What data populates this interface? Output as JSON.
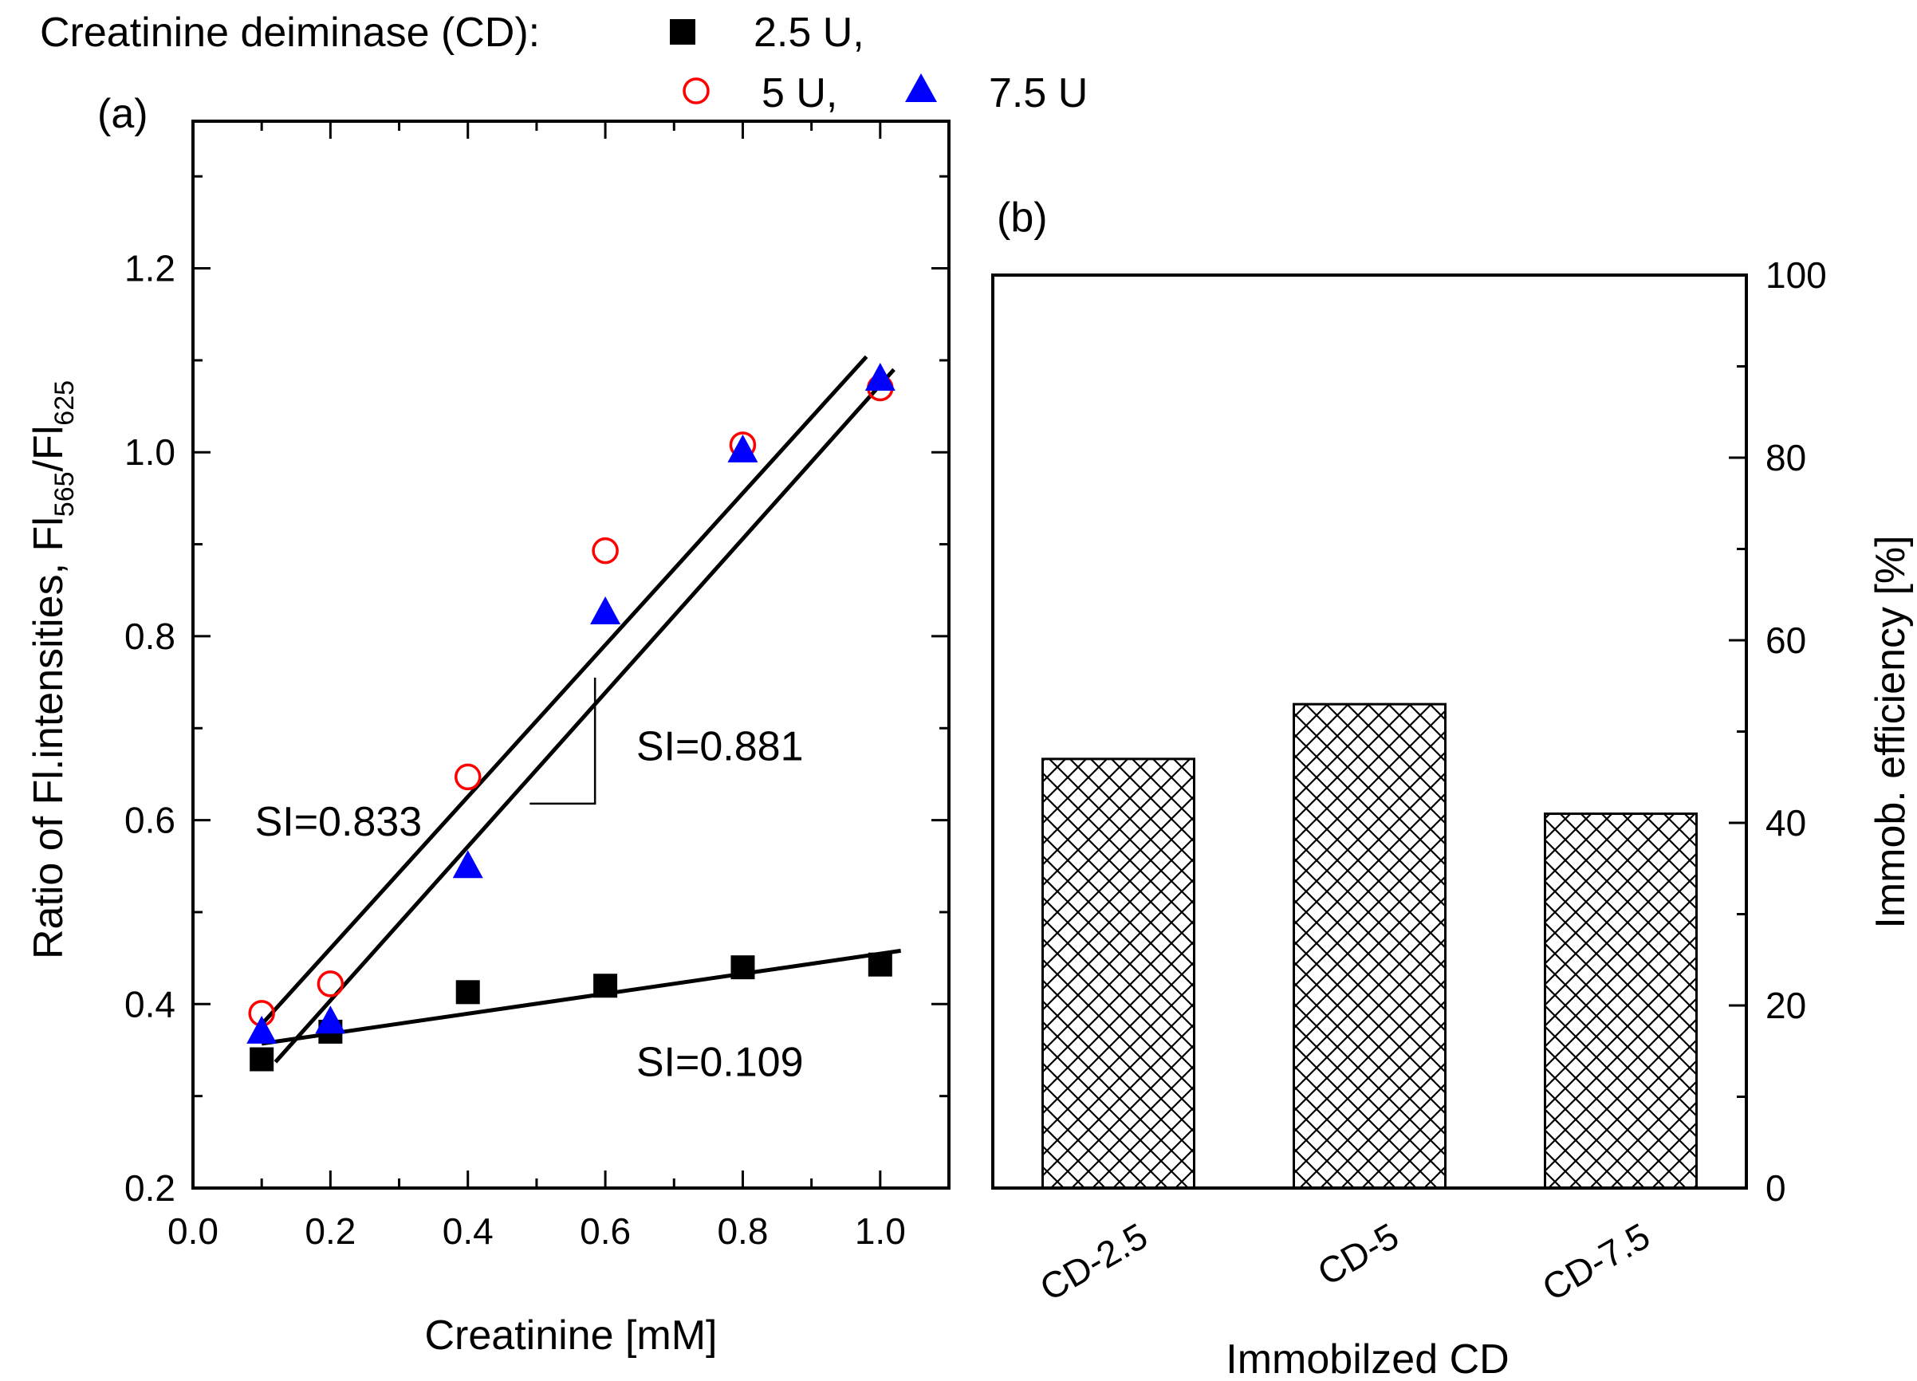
{
  "figure": {
    "legend_title": "Creatinine deiminase (CD):",
    "legend": [
      {
        "label": "2.5 U,",
        "marker": "square",
        "color": "#000000"
      },
      {
        "label": "5 U,",
        "marker": "circle-open",
        "color": "#ff0000"
      },
      {
        "label": "7.5 U",
        "marker": "triangle",
        "color": "#0000ff"
      }
    ]
  },
  "chart_data": [
    {
      "type": "scatter",
      "panel_label": "(a)",
      "xlabel": "Creatinine [mM]",
      "ylabel_main": "Ratio of Fl.intensities, Fl",
      "ylabel_sub1": "565",
      "ylabel_slash": "/Fl",
      "ylabel_sub2": "625",
      "xlim": [
        0.0,
        1.1
      ],
      "ylim": [
        0.2,
        1.36
      ],
      "xticks": [
        0.0,
        0.2,
        0.4,
        0.6,
        0.8,
        1.0
      ],
      "xtick_labels": [
        "0.0",
        "0.2",
        "0.4",
        "0.6",
        "0.8",
        "1.0"
      ],
      "yticks": [
        0.2,
        0.4,
        0.6,
        0.8,
        1.0,
        1.2
      ],
      "ytick_labels": [
        "0.2",
        "0.4",
        "0.6",
        "0.8",
        "1.0",
        "1.2"
      ],
      "series": [
        {
          "name": "2.5 U",
          "x": [
            0.1,
            0.2,
            0.4,
            0.6,
            0.8,
            1.0
          ],
          "y": [
            0.34,
            0.37,
            0.413,
            0.42,
            0.44,
            0.443
          ]
        },
        {
          "name": "5 U",
          "x": [
            0.1,
            0.2,
            0.4,
            0.6,
            0.8,
            1.0
          ],
          "y": [
            0.39,
            0.422,
            0.647,
            0.893,
            1.008,
            1.07
          ]
        },
        {
          "name": "7.5 U",
          "x": [
            0.1,
            0.2,
            0.4,
            0.6,
            0.8,
            1.0
          ],
          "y": [
            0.37,
            0.381,
            0.55,
            0.826,
            1.002,
            1.08
          ]
        }
      ],
      "fits": [
        {
          "name": "fit-2.5U",
          "x": [
            0.1,
            1.03
          ],
          "y": [
            0.357,
            0.458
          ]
        },
        {
          "name": "fit-5U",
          "x": [
            0.1,
            0.98
          ],
          "y": [
            0.378,
            1.104
          ]
        },
        {
          "name": "fit-7.5U",
          "x": [
            0.12,
            1.02
          ],
          "y": [
            0.337,
            1.09
          ]
        }
      ],
      "annotations": [
        {
          "text": "SI=0.833",
          "x": 0.09,
          "y": 0.583
        },
        {
          "text": "SI=0.881",
          "x": 0.645,
          "y": 0.665
        },
        {
          "text": "SI=0.109",
          "x": 0.645,
          "y": 0.322
        }
      ],
      "slope_triangle": {
        "x": [
          0.49,
          0.585,
          0.585
        ],
        "y": [
          0.618,
          0.618,
          0.755
        ]
      }
    },
    {
      "type": "bar",
      "panel_label": "(b)",
      "xlabel": "Immobilzed CD",
      "ylabel": "Immob. efficiency [%]",
      "categories": [
        "CD-2.5",
        "CD-5",
        "CD-7.5"
      ],
      "values": [
        47,
        53,
        41
      ],
      "ylim": [
        0,
        100
      ],
      "yticks": [
        0,
        20,
        40,
        60,
        80,
        100
      ],
      "ytick_labels": [
        "0",
        "20",
        "40",
        "60",
        "80",
        "100"
      ],
      "pattern": "crosshatch"
    }
  ]
}
